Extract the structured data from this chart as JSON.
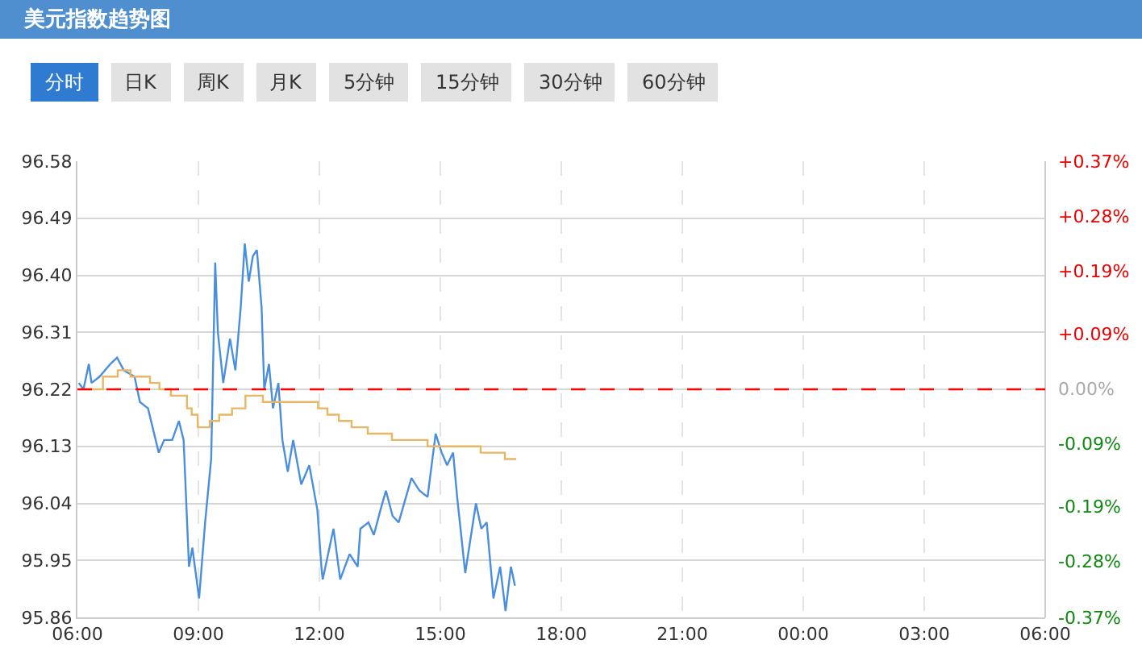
{
  "chart_data": {
    "type": "line",
    "title": "美元指数趋势图",
    "annotations": [
      "分时",
      "日K",
      "周K",
      "月K",
      "5分钟",
      "15分钟",
      "30分钟",
      "60分钟"
    ],
    "series": [
      {
        "color": "#4a8fdf",
        "x": [
          "--01-01T06:02",
          "--01-01T06:09",
          "--01-01T06:17",
          "--01-01T06:21",
          "--01-01T06:33",
          "--01-01T06:49",
          "--01-01T06:59",
          "--01-01T07:09",
          "--01-01T07:25",
          "--01-01T07:33",
          "--01-01T07:45",
          "--01-01T08:01",
          "--01-01T08:09",
          "--01-01T08:21",
          "--01-01T08:31",
          "--01-01T08:38",
          "--01-01T08:46",
          "--01-01T08:51",
          "--01-01T09:01",
          "--01-01T09:10",
          "--01-01T09:19",
          "--01-01T09:25",
          "--01-01T09:29",
          "--01-01T09:37",
          "--01-01T09:47",
          "--01-01T09:55",
          "--01-01T10:03",
          "--01-01T10:09",
          "--01-01T10:15",
          "--01-01T10:21",
          "--01-01T10:27",
          "--01-01T10:34",
          "--01-01T10:38",
          "--01-01T10:45",
          "--01-01T10:51",
          "--01-01T10:59",
          "--01-01T11:05",
          "--01-01T11:13",
          "--01-01T11:21",
          "--01-01T11:33",
          "--01-01T11:45",
          "--01-01T11:57",
          "--01-01T12:03",
          "--01-01T12:05",
          "--01-01T12:21",
          "--01-01T12:31",
          "--01-01T12:45",
          "--01-01T12:57",
          "--01-01T13:01",
          "--01-01T13:13",
          "--01-01T13:21",
          "--01-01T13:31",
          "--01-01T13:39",
          "--01-01T13:49",
          "--01-01T13:58",
          "--01-01T14:17",
          "--01-01T14:29",
          "--01-01T14:41",
          "--01-01T14:53",
          "--01-01T15:02",
          "--01-01T15:10",
          "--01-01T15:19",
          "--01-01T15:25",
          "--01-01T15:37",
          "--01-01T15:53",
          "--01-01T16:01",
          "--01-01T16:09",
          "--01-01T16:19",
          "--01-01T16:29",
          "--01-01T16:37",
          "--01-01T16:45",
          "--01-01T16:51"
        ],
        "values": [
          96.23,
          96.22,
          96.26,
          96.23,
          96.24,
          96.26,
          96.27,
          96.25,
          96.24,
          96.2,
          96.19,
          96.12,
          96.14,
          96.14,
          96.17,
          96.14,
          95.94,
          95.97,
          95.89,
          96.01,
          96.11,
          96.42,
          96.31,
          96.23,
          96.3,
          96.25,
          96.35,
          96.45,
          96.39,
          96.43,
          96.44,
          96.35,
          96.22,
          96.26,
          96.19,
          96.23,
          96.14,
          96.09,
          96.14,
          96.07,
          96.1,
          96.03,
          95.94,
          95.92,
          96.0,
          95.92,
          95.96,
          95.94,
          96.0,
          96.01,
          95.99,
          96.03,
          96.06,
          96.02,
          96.01,
          96.08,
          96.06,
          96.05,
          96.15,
          96.12,
          96.1,
          96.12,
          96.05,
          95.93,
          96.04,
          96.0,
          96.01,
          95.89,
          95.94,
          95.87,
          95.94,
          95.91
        ]
      },
      {
        "type": "step",
        "color": "#e8b765",
        "x": [
          "--01-01T06:02",
          "--01-01T06:38",
          "--01-01T07:00",
          "--01-01T07:19",
          "--01-01T07:48",
          "--01-01T08:02",
          "--01-01T08:19",
          "--01-01T08:43",
          "--01-01T08:50",
          "--01-01T08:59",
          "--01-01T09:17",
          "--01-01T09:31",
          "--01-01T09:50",
          "--01-01T10:10",
          "--01-01T10:36",
          "--01-01T11:58",
          "--01-01T12:12",
          "--01-01T12:29",
          "--01-01T12:48",
          "--01-01T13:12",
          "--01-01T13:48",
          "--01-01T14:41",
          "--01-01T16:00",
          "--01-01T16:36",
          "--01-01T16:53"
        ],
        "values": [
          96.22,
          96.24,
          96.25,
          96.24,
          96.23,
          96.22,
          96.21,
          96.19,
          96.18,
          96.16,
          96.17,
          96.18,
          96.19,
          96.21,
          96.2,
          96.19,
          96.18,
          96.17,
          96.16,
          96.15,
          96.14,
          96.13,
          96.12,
          96.11,
          96.11
        ]
      }
    ],
    "xlim": [
      "--01-01T06:00",
      "--01-02T06:00"
    ],
    "xticks": [
      {
        "value": "--01-01T06:00",
        "label": "06:00"
      },
      {
        "value": "--01-01T09:00",
        "label": "09:00"
      },
      {
        "value": "--01-01T12:00",
        "label": "12:00"
      },
      {
        "value": "--01-01T15:00",
        "label": "15:00"
      },
      {
        "value": "--01-01T18:00",
        "label": "18:00"
      },
      {
        "value": "--01-01T21:00",
        "label": "21:00"
      },
      {
        "value": "--01-02T00:00",
        "label": "00:00"
      },
      {
        "value": "--01-02T03:00",
        "label": "03:00"
      },
      {
        "value": "--01-02T06:00",
        "label": "06:00"
      }
    ],
    "ylim": [
      95.86,
      96.58
    ],
    "yticks": [
      95.86,
      95.95,
      96.04,
      96.13,
      96.22,
      96.31,
      {
        "value": 96.4,
        "label": "96.40"
      },
      96.49,
      96.58
    ],
    "y2lim": [
      -0.37,
      0.37
    ],
    "y2ticks": [
      {
        "value": -0.37,
        "label": "-0.37%"
      },
      {
        "value": -0.28,
        "label": "-0.28%"
      },
      {
        "value": -0.19,
        "label": "-0.19%"
      },
      {
        "value": -0.09,
        "label": "-0.09%"
      },
      {
        "value": 0,
        "label": "0.00%"
      },
      {
        "value": 0.09,
        "label": "+0.09%"
      },
      {
        "value": 0.19,
        "label": "+0.19%"
      },
      {
        "value": 0.28,
        "label": "+0.28%"
      },
      {
        "value": 0.37,
        "label": "+0.37%"
      }
    ],
    "ref_lines": [
      {
        "axis": "y",
        "value": 96.22,
        "color": "#ff0000",
        "line_style": "dashed"
      }
    ],
    "grid": true,
    "marker": "none",
    "line_style": "solid"
  }
}
